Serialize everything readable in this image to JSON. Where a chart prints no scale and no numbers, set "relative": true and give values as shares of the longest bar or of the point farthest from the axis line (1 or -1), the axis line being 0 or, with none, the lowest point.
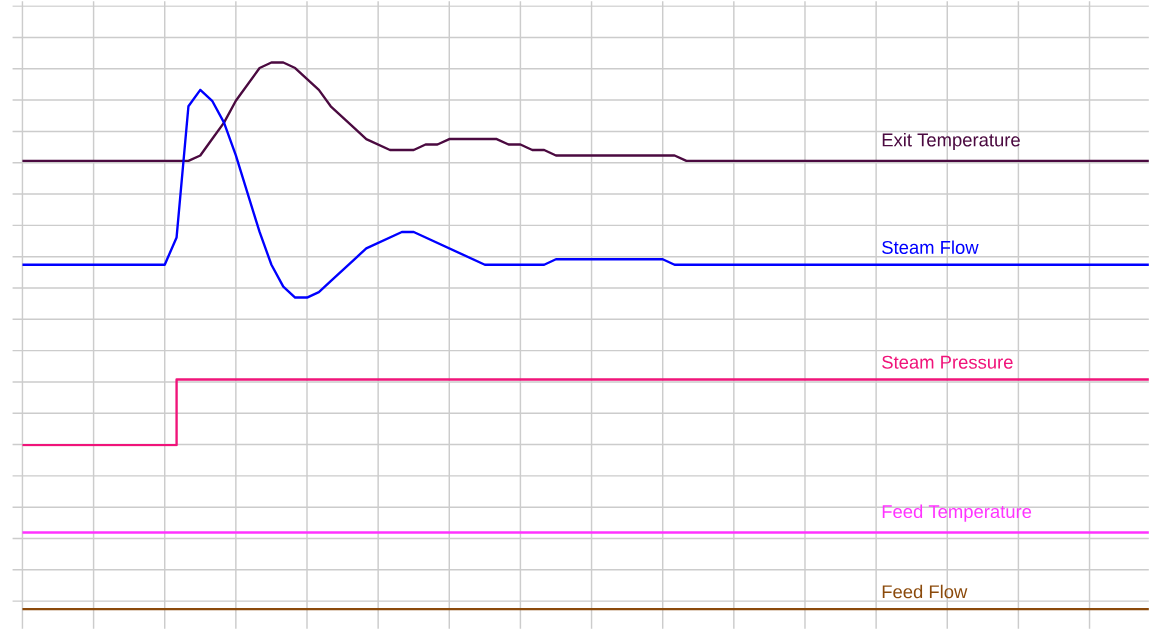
{
  "chart_data": {
    "type": "line",
    "relative": true,
    "grid": true,
    "legend": false,
    "marker": "none",
    "line_style": "solid",
    "categories": [
      null,
      null,
      null,
      null,
      null,
      null,
      null,
      null,
      null,
      null,
      null,
      null,
      null,
      null,
      null,
      null,
      null,
      null,
      null,
      null,
      null,
      null,
      null,
      null,
      null,
      null,
      null,
      null,
      null,
      null,
      null,
      null,
      null,
      null,
      null,
      null,
      null,
      null,
      null,
      null,
      null,
      null,
      null,
      null,
      null,
      null,
      null,
      null,
      null,
      null,
      null,
      null,
      null,
      null,
      null,
      null,
      null,
      null,
      null,
      null,
      null,
      null,
      null,
      null,
      null,
      null,
      null,
      null,
      null,
      null,
      null,
      null,
      null,
      null,
      null,
      null,
      null,
      null,
      null,
      null,
      null,
      null,
      null,
      null,
      null,
      null,
      null,
      null,
      null,
      null,
      null,
      null,
      null,
      null,
      null,
      null
    ],
    "series": [
      {
        "name": "Exit Temperature",
        "color": "#4b0a40",
        "values": [
          0.82,
          0.82,
          0.82,
          0.82,
          0.82,
          0.82,
          0.82,
          0.82,
          0.82,
          0.82,
          0.82,
          0.82,
          0.82,
          0.82,
          0.82,
          0.83,
          0.86,
          0.89,
          0.93,
          0.96,
          0.99,
          1.0,
          1.0,
          0.99,
          0.97,
          0.95,
          0.92,
          0.9,
          0.88,
          0.86,
          0.85,
          0.84,
          0.84,
          0.84,
          0.85,
          0.85,
          0.86,
          0.86,
          0.86,
          0.86,
          0.86,
          0.85,
          0.85,
          0.84,
          0.84,
          0.83,
          0.83,
          0.83,
          0.83,
          0.83,
          0.83,
          0.83,
          0.83,
          0.83,
          0.83,
          0.83,
          0.82,
          0.82,
          0.82,
          0.82,
          0.82,
          0.82,
          0.82,
          0.82,
          0.82,
          0.82,
          0.82,
          0.82,
          0.82,
          0.82,
          0.82,
          0.82,
          0.82,
          0.82,
          0.82,
          0.82,
          0.82,
          0.82,
          0.82,
          0.82,
          0.82,
          0.82,
          0.82,
          0.82,
          0.82,
          0.82,
          0.82,
          0.82,
          0.82,
          0.82,
          0.82,
          0.82,
          0.82,
          0.82,
          0.82,
          0.82
        ]
      },
      {
        "name": "Steam Flow",
        "color": "#0000ff",
        "values": [
          0.63,
          0.63,
          0.63,
          0.63,
          0.63,
          0.63,
          0.63,
          0.63,
          0.63,
          0.63,
          0.63,
          0.63,
          0.63,
          0.68,
          0.92,
          0.95,
          0.93,
          0.89,
          0.83,
          0.76,
          0.69,
          0.63,
          0.59,
          0.57,
          0.57,
          0.58,
          0.6,
          0.62,
          0.64,
          0.66,
          0.67,
          0.68,
          0.69,
          0.69,
          0.68,
          0.67,
          0.66,
          0.65,
          0.64,
          0.63,
          0.63,
          0.63,
          0.63,
          0.63,
          0.63,
          0.64,
          0.64,
          0.64,
          0.64,
          0.64,
          0.64,
          0.64,
          0.64,
          0.64,
          0.64,
          0.63,
          0.63,
          0.63,
          0.63,
          0.63,
          0.63,
          0.63,
          0.63,
          0.63,
          0.63,
          0.63,
          0.63,
          0.63,
          0.63,
          0.63,
          0.63,
          0.63,
          0.63,
          0.63,
          0.63,
          0.63,
          0.63,
          0.63,
          0.63,
          0.63,
          0.63,
          0.63,
          0.63,
          0.63,
          0.63,
          0.63,
          0.63,
          0.63,
          0.63,
          0.63,
          0.63,
          0.63,
          0.63,
          0.63,
          0.63,
          0.63
        ]
      },
      {
        "name": "Steam Pressure",
        "color": "#f0147a",
        "type": "step",
        "values": [
          0.3,
          0.3,
          0.3,
          0.3,
          0.3,
          0.3,
          0.3,
          0.3,
          0.3,
          0.3,
          0.3,
          0.3,
          0.3,
          0.42,
          0.42,
          0.42,
          0.42,
          0.42,
          0.42,
          0.42,
          0.42,
          0.42,
          0.42,
          0.42,
          0.42,
          0.42,
          0.42,
          0.42,
          0.42,
          0.42,
          0.42,
          0.42,
          0.42,
          0.42,
          0.42,
          0.42,
          0.42,
          0.42,
          0.42,
          0.42,
          0.42,
          0.42,
          0.42,
          0.42,
          0.42,
          0.42,
          0.42,
          0.42,
          0.42,
          0.42,
          0.42,
          0.42,
          0.42,
          0.42,
          0.42,
          0.42,
          0.42,
          0.42,
          0.42,
          0.42,
          0.42,
          0.42,
          0.42,
          0.42,
          0.42,
          0.42,
          0.42,
          0.42,
          0.42,
          0.42,
          0.42,
          0.42,
          0.42,
          0.42,
          0.42,
          0.42,
          0.42,
          0.42,
          0.42,
          0.42,
          0.42,
          0.42,
          0.42,
          0.42,
          0.42,
          0.42,
          0.42,
          0.42,
          0.42,
          0.42,
          0.42,
          0.42,
          0.42,
          0.42,
          0.42,
          0.42
        ]
      },
      {
        "name": "Feed Temperature",
        "color": "#ff33ff",
        "values": [
          0.14,
          0.14,
          0.14,
          0.14,
          0.14,
          0.14,
          0.14,
          0.14,
          0.14,
          0.14,
          0.14,
          0.14,
          0.14,
          0.14,
          0.14,
          0.14,
          0.14,
          0.14,
          0.14,
          0.14,
          0.14,
          0.14,
          0.14,
          0.14,
          0.14,
          0.14,
          0.14,
          0.14,
          0.14,
          0.14,
          0.14,
          0.14,
          0.14,
          0.14,
          0.14,
          0.14,
          0.14,
          0.14,
          0.14,
          0.14,
          0.14,
          0.14,
          0.14,
          0.14,
          0.14,
          0.14,
          0.14,
          0.14,
          0.14,
          0.14,
          0.14,
          0.14,
          0.14,
          0.14,
          0.14,
          0.14,
          0.14,
          0.14,
          0.14,
          0.14,
          0.14,
          0.14,
          0.14,
          0.14,
          0.14,
          0.14,
          0.14,
          0.14,
          0.14,
          0.14,
          0.14,
          0.14,
          0.14,
          0.14,
          0.14,
          0.14,
          0.14,
          0.14,
          0.14,
          0.14,
          0.14,
          0.14,
          0.14,
          0.14,
          0.14,
          0.14,
          0.14,
          0.14,
          0.14,
          0.14,
          0.14,
          0.14,
          0.14,
          0.14,
          0.14,
          0.14
        ]
      },
      {
        "name": "Feed Flow",
        "color": "#8b4a0b",
        "values": [
          0,
          0,
          0,
          0,
          0,
          0,
          0,
          0,
          0,
          0,
          0,
          0,
          0,
          0,
          0,
          0,
          0,
          0,
          0,
          0,
          0,
          0,
          0,
          0,
          0,
          0,
          0,
          0,
          0,
          0,
          0,
          0,
          0,
          0,
          0,
          0,
          0,
          0,
          0,
          0,
          0,
          0,
          0,
          0,
          0,
          0,
          0,
          0,
          0,
          0,
          0,
          0,
          0,
          0,
          0,
          0,
          0,
          0,
          0,
          0,
          0,
          0,
          0,
          0,
          0,
          0,
          0,
          0,
          0,
          0,
          0,
          0,
          0,
          0,
          0,
          0,
          0,
          0,
          0,
          0,
          0,
          0,
          0,
          0,
          0,
          0,
          0,
          0,
          0,
          0,
          0,
          0,
          0,
          0,
          0,
          0
        ]
      }
    ]
  }
}
